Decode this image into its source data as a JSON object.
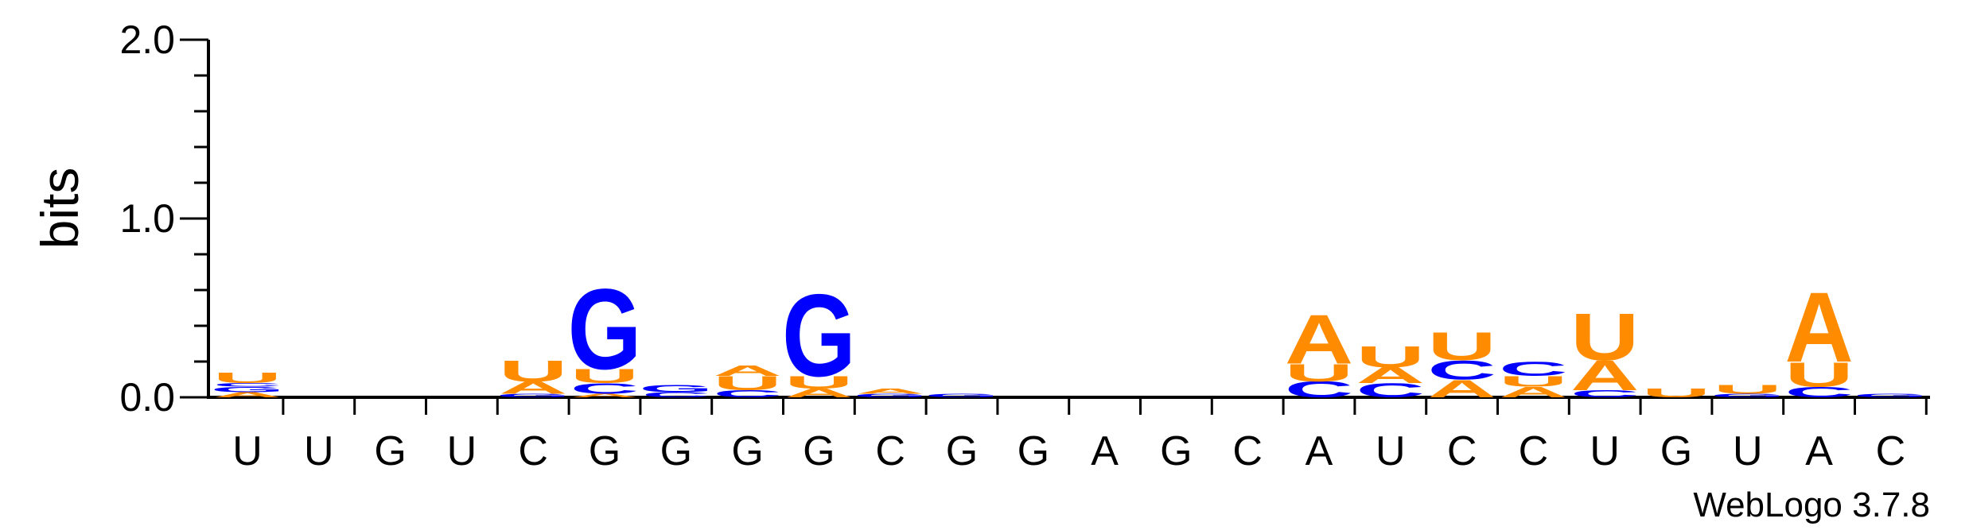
{
  "chart_data": {
    "type": "sequence-logo",
    "ylabel": "bits",
    "ylim": [
      0,
      2.0
    ],
    "yticks": [
      {
        "value": 0.0,
        "label": "0.0"
      },
      {
        "value": 1.0,
        "label": "1.0"
      },
      {
        "value": 2.0,
        "label": "2.0"
      }
    ],
    "alphabet_colors": {
      "A": "#FF8C00",
      "U": "#FF8C00",
      "G": "#0000FF",
      "C": "#0000FF"
    },
    "positions": [
      {
        "label": "U",
        "stack": [
          {
            "base": "A",
            "bits": 0.03
          },
          {
            "base": "G",
            "bits": 0.03
          },
          {
            "base": "C",
            "bits": 0.02
          },
          {
            "base": "U",
            "bits": 0.06
          }
        ]
      },
      {
        "label": "U",
        "stack": []
      },
      {
        "label": "G",
        "stack": []
      },
      {
        "label": "U",
        "stack": []
      },
      {
        "label": "C",
        "stack": [
          {
            "base": "G",
            "bits": 0.02
          },
          {
            "base": "A",
            "bits": 0.07
          },
          {
            "base": "U",
            "bits": 0.12
          }
        ]
      },
      {
        "label": "G",
        "stack": [
          {
            "base": "A",
            "bits": 0.02
          },
          {
            "base": "C",
            "bits": 0.06
          },
          {
            "base": "U",
            "bits": 0.08
          },
          {
            "base": "G",
            "bits": 0.46
          }
        ]
      },
      {
        "label": "G",
        "stack": [
          {
            "base": "C",
            "bits": 0.03
          },
          {
            "base": "G",
            "bits": 0.04
          }
        ]
      },
      {
        "label": "G",
        "stack": [
          {
            "base": "C",
            "bits": 0.04
          },
          {
            "base": "U",
            "bits": 0.08
          },
          {
            "base": "A",
            "bits": 0.06
          }
        ]
      },
      {
        "label": "G",
        "stack": [
          {
            "base": "A",
            "bits": 0.05
          },
          {
            "base": "U",
            "bits": 0.07
          },
          {
            "base": "G",
            "bits": 0.47
          }
        ]
      },
      {
        "label": "C",
        "stack": [
          {
            "base": "G",
            "bits": 0.02
          },
          {
            "base": "A",
            "bits": 0.03
          }
        ]
      },
      {
        "label": "G",
        "stack": [
          {
            "base": "G",
            "bits": 0.02
          }
        ]
      },
      {
        "label": "G",
        "stack": []
      },
      {
        "label": "A",
        "stack": []
      },
      {
        "label": "G",
        "stack": []
      },
      {
        "label": "C",
        "stack": []
      },
      {
        "label": "A",
        "stack": [
          {
            "base": "C",
            "bits": 0.09
          },
          {
            "base": "U",
            "bits": 0.1
          },
          {
            "base": "A",
            "bits": 0.28
          }
        ]
      },
      {
        "label": "U",
        "stack": [
          {
            "base": "C",
            "bits": 0.08
          },
          {
            "base": "A",
            "bits": 0.09
          },
          {
            "base": "U",
            "bits": 0.12
          }
        ]
      },
      {
        "label": "C",
        "stack": [
          {
            "base": "A",
            "bits": 0.1
          },
          {
            "base": "C",
            "bits": 0.11
          },
          {
            "base": "U",
            "bits": 0.16
          }
        ]
      },
      {
        "label": "C",
        "stack": [
          {
            "base": "A",
            "bits": 0.06
          },
          {
            "base": "U",
            "bits": 0.06
          },
          {
            "base": "C",
            "bits": 0.08
          }
        ]
      },
      {
        "label": "U",
        "stack": [
          {
            "base": "C",
            "bits": 0.04
          },
          {
            "base": "A",
            "bits": 0.17
          },
          {
            "base": "U",
            "bits": 0.27
          }
        ]
      },
      {
        "label": "G",
        "stack": [
          {
            "base": "U",
            "bits": 0.05
          }
        ]
      },
      {
        "label": "U",
        "stack": [
          {
            "base": "G",
            "bits": 0.02
          },
          {
            "base": "U",
            "bits": 0.05
          }
        ]
      },
      {
        "label": "A",
        "stack": [
          {
            "base": "C",
            "bits": 0.06
          },
          {
            "base": "U",
            "bits": 0.14
          },
          {
            "base": "A",
            "bits": 0.4
          }
        ]
      },
      {
        "label": "C",
        "stack": [
          {
            "base": "G",
            "bits": 0.02
          }
        ]
      }
    ],
    "credit": "WebLogo 3.7.8"
  }
}
